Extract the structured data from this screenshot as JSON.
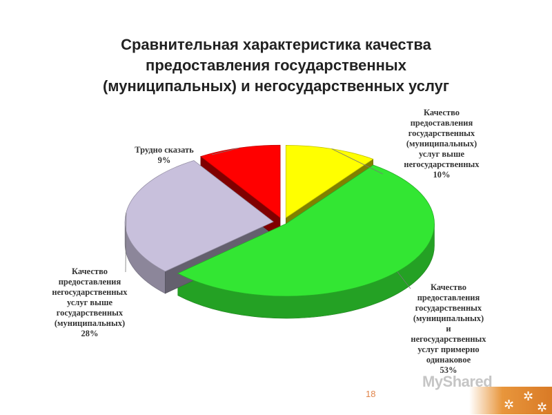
{
  "title_lines": [
    "Сравнительная характеристика качества",
    "предоставления государственных",
    "(муниципальных) и негосударственных услуг"
  ],
  "chart_data": {
    "type": "pie",
    "title": "Сравнительная характеристика качества предоставления государственных (муниципальных) и негосударственных услуг",
    "slices": [
      {
        "label": "Качество предоставления государственных (муниципальных) услуг выше негосударственных",
        "value": 10,
        "value_label": "10%",
        "color": "#ffff00",
        "label_lines": [
          "Качество",
          "предоставления",
          "государственных",
          "(муниципальных)",
          "услуг выше",
          "негосударственных",
          "10%"
        ]
      },
      {
        "label": "Качество предоставления государственных (муниципальных) и негосударственных услуг примерно одинаковое",
        "value": 53,
        "value_label": "53%",
        "color": "#33e633",
        "label_lines": [
          "Качество",
          "предоставления",
          "государственных",
          "(муниципальных)",
          "и",
          "негосударственных",
          "услуг примерно",
          "одинаковое",
          "53%"
        ]
      },
      {
        "label": "Качество предоставления негосударственных услуг выше государственных (муниципальных)",
        "value": 28,
        "value_label": "28%",
        "color": "#c8c0dc",
        "label_lines": [
          "Качество",
          "предоставления",
          "негосударственных",
          "услуг выше",
          "государственных",
          "(муниципальных)",
          "28%"
        ]
      },
      {
        "label": "Трудно сказать",
        "value": 9,
        "value_label": "9%",
        "color": "#ff0000",
        "label_lines": [
          "Трудно сказать",
          "9%"
        ]
      }
    ],
    "exploded": true,
    "style": "3d"
  },
  "page_number": "18",
  "watermark": "MyShared"
}
